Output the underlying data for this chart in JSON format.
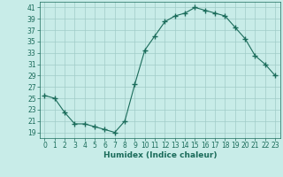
{
  "x": [
    0,
    1,
    2,
    3,
    4,
    5,
    6,
    7,
    8,
    9,
    10,
    11,
    12,
    13,
    14,
    15,
    16,
    17,
    18,
    19,
    20,
    21,
    22,
    23
  ],
  "y": [
    25.5,
    25.0,
    22.5,
    20.5,
    20.5,
    20.0,
    19.5,
    19.0,
    21.0,
    27.5,
    33.5,
    36.0,
    38.5,
    39.5,
    40.0,
    41.0,
    40.5,
    40.0,
    39.5,
    37.5,
    35.5,
    32.5,
    31.0,
    29.0
  ],
  "xlabel": "Humidex (Indice chaleur)",
  "ylim": [
    18,
    42
  ],
  "xlim": [
    -0.5,
    23.5
  ],
  "yticks": [
    19,
    21,
    23,
    25,
    27,
    29,
    31,
    33,
    35,
    37,
    39,
    41
  ],
  "xticks": [
    0,
    1,
    2,
    3,
    4,
    5,
    6,
    7,
    8,
    9,
    10,
    11,
    12,
    13,
    14,
    15,
    16,
    17,
    18,
    19,
    20,
    21,
    22,
    23
  ],
  "line_color": "#1a6b5a",
  "marker": "+",
  "marker_size": 4,
  "bg_color": "#c8ece8",
  "grid_color": "#a0ccc8",
  "label_fontsize": 6.5,
  "tick_fontsize": 5.5
}
